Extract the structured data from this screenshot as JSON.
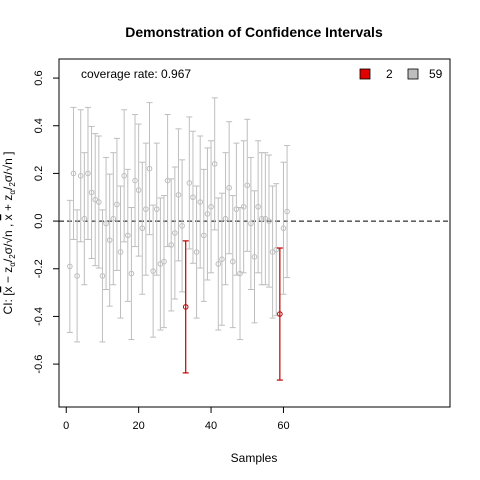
{
  "chart_data": {
    "type": "scatter",
    "title": "Demonstration of Confidence Intervals",
    "xlabel": "Samples",
    "ylabel_parts": {
      "main": "CI: [",
      "xbar1": "x",
      "minus": " − z",
      "alpha1": "α",
      "div1": "/",
      "sub1": "2",
      "sig1": "σ/√n ,  ",
      "xbar2": "x",
      "plus": " + z",
      "alpha2": "α",
      "div2": "/",
      "sub2": "2",
      "sig2": "σ/√n ]"
    },
    "xlim": [
      -2,
      106
    ],
    "ylim": [
      -0.78,
      0.68
    ],
    "xticks": [
      "0",
      "20",
      "40",
      "60"
    ],
    "xtick_values": [
      0,
      20,
      40,
      60
    ],
    "yticks": [
      "-0.6",
      "-0.4",
      "-0.2",
      "0.0",
      "0.2",
      "0.4",
      "0.6"
    ],
    "ytick_values": [
      -0.6,
      -0.4,
      -0.2,
      0.0,
      0.2,
      0.4,
      0.6
    ],
    "reference_line": 0,
    "half_width": 0.277,
    "annotation": "coverage rate: 0.967",
    "legend": [
      {
        "label": "2",
        "color": "#e00000"
      },
      {
        "label": "59",
        "color": "#bebebe"
      }
    ],
    "colors": {
      "covered": "#bebebe",
      "missed": "#c00000",
      "reference": "#000000"
    },
    "means": [
      -0.19,
      0.2,
      -0.23,
      0.19,
      0.01,
      0.2,
      0.12,
      0.09,
      0.08,
      -0.23,
      -0.01,
      -0.08,
      0.01,
      0.07,
      -0.13,
      0.19,
      -0.06,
      -0.22,
      0.17,
      0.13,
      -0.03,
      0.05,
      0.22,
      -0.21,
      0.05,
      -0.18,
      -0.17,
      0.17,
      -0.1,
      -0.05,
      0.11,
      -0.02,
      -0.36,
      0.16,
      0.1,
      -0.13,
      0.08,
      -0.06,
      0.03,
      0.06,
      0.24,
      -0.18,
      -0.16,
      0.01,
      0.14,
      -0.17,
      0.05,
      -0.22,
      0.06,
      0.15,
      -0.01,
      -0.15,
      0.06,
      0.01,
      0.01,
      0.0,
      -0.13,
      -0.12,
      -0.39,
      -0.03,
      0.04
    ],
    "missed_indices": [
      33,
      59
    ]
  }
}
